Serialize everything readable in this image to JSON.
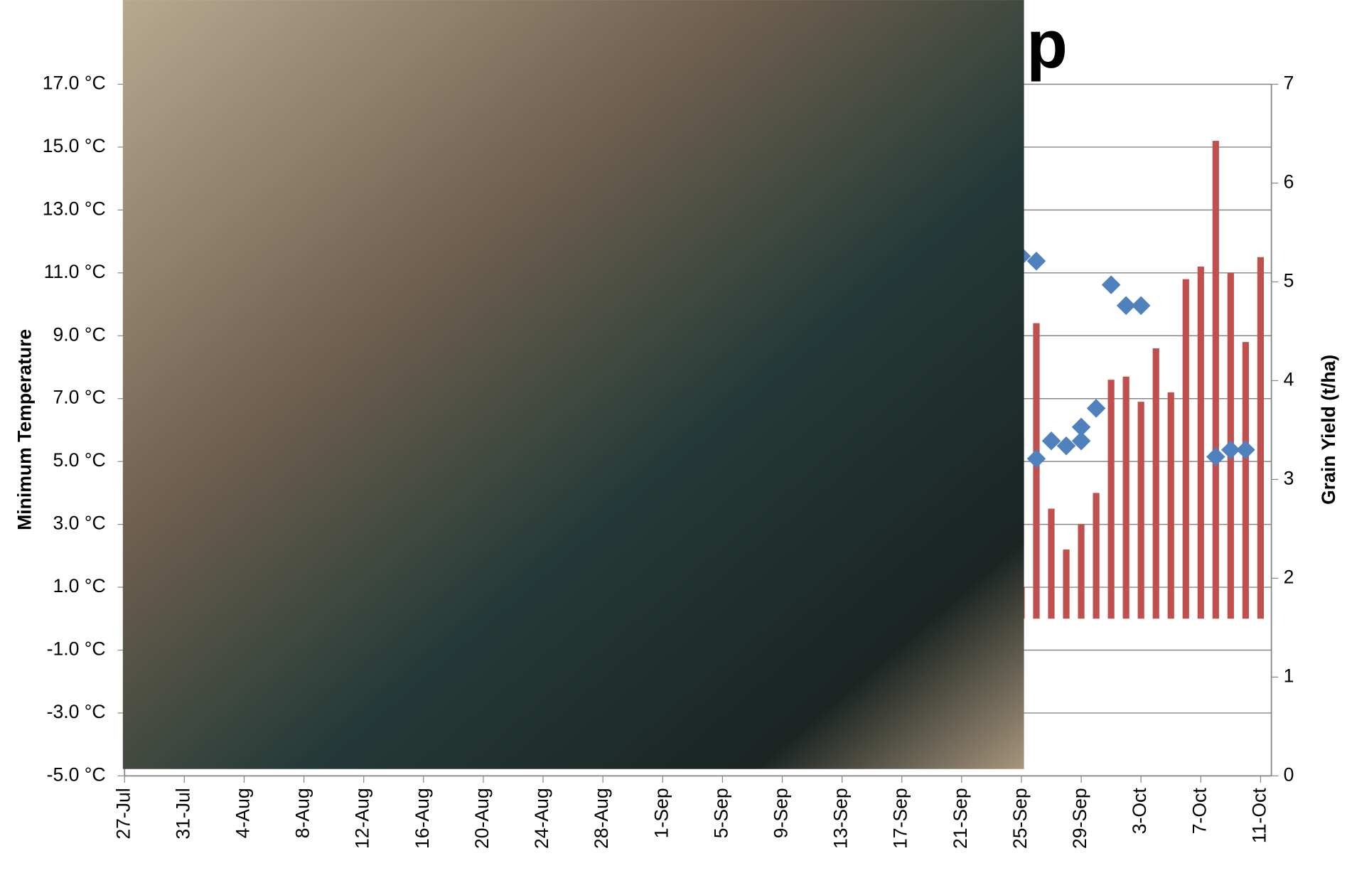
{
  "chart_data": {
    "type": "bar-scatter",
    "title": "p",
    "ylabel": "Minimum Temperature",
    "y2label": "Grain Yield (t/ha)",
    "categories": [
      "27-Jul",
      null,
      null,
      null,
      "31-Jul",
      null,
      null,
      null,
      "4-Aug",
      null,
      null,
      null,
      "8-Aug",
      null,
      null,
      null,
      "12-Aug",
      null,
      null,
      null,
      "16-Aug",
      null,
      null,
      null,
      "20-Aug",
      null,
      null,
      null,
      "24-Aug",
      null,
      null,
      null,
      "28-Aug",
      null,
      null,
      null,
      "1-Sep",
      null,
      null,
      null,
      "5-Sep",
      null,
      null,
      null,
      "9-Sep",
      null,
      null,
      null,
      "13-Sep",
      null,
      null,
      null,
      "17-Sep",
      null,
      null,
      null,
      "21-Sep",
      null,
      null,
      null,
      "25-Sep",
      null,
      null,
      null,
      "29-Sep",
      null,
      null,
      null,
      "3-Oct",
      null,
      null,
      null,
      "7-Oct",
      null,
      null,
      null,
      "11-Oct"
    ],
    "series": [
      {
        "type": "bar",
        "color": "#c0504d",
        "values": [
          null,
          null,
          null,
          null,
          null,
          null,
          null,
          null,
          null,
          null,
          null,
          null,
          null,
          null,
          null,
          null,
          null,
          null,
          null,
          null,
          null,
          null,
          null,
          null,
          null,
          null,
          null,
          null,
          null,
          null,
          null,
          null,
          null,
          null,
          null,
          null,
          null,
          null,
          null,
          null,
          null,
          null,
          null,
          null,
          null,
          null,
          null,
          null,
          null,
          null,
          null,
          null,
          null,
          null,
          null,
          null,
          null,
          null,
          null,
          null,
          1.0,
          9.4,
          3.5,
          2.2,
          3.0,
          4.0,
          7.6,
          7.7,
          6.9,
          8.6,
          7.2,
          10.8,
          11.2,
          15.2,
          11.0,
          8.8,
          11.5
        ]
      },
      {
        "type": "scatter",
        "axis": "y2",
        "color": "#4f81bd",
        "values": [
          null,
          null,
          null,
          null,
          null,
          null,
          null,
          null,
          null,
          null,
          null,
          null,
          null,
          null,
          null,
          null,
          null,
          null,
          null,
          null,
          null,
          null,
          null,
          null,
          null,
          null,
          null,
          null,
          null,
          null,
          null,
          null,
          null,
          null,
          null,
          null,
          null,
          null,
          null,
          null,
          null,
          null,
          null,
          null,
          null,
          null,
          null,
          null,
          null,
          null,
          null,
          null,
          null,
          null,
          null,
          null,
          null,
          null,
          null,
          null,
          5.26,
          5.21,
          3.39,
          3.34,
          3.53,
          3.72,
          4.97,
          4.76,
          4.76,
          null,
          null,
          null,
          null,
          3.23,
          3.3,
          3.3,
          null
        ]
      },
      {
        "type": "scatter",
        "axis": "y2",
        "color": "#4f81bd",
        "values": [
          null,
          null,
          null,
          null,
          null,
          null,
          null,
          null,
          null,
          null,
          null,
          null,
          null,
          null,
          null,
          null,
          null,
          null,
          null,
          null,
          null,
          null,
          null,
          null,
          null,
          null,
          null,
          null,
          null,
          null,
          null,
          null,
          null,
          null,
          null,
          null,
          null,
          null,
          null,
          null,
          null,
          null,
          null,
          null,
          null,
          null,
          null,
          null,
          null,
          null,
          null,
          null,
          null,
          null,
          null,
          null,
          null,
          null,
          null,
          null,
          null,
          3.21,
          null,
          null,
          3.39,
          null,
          null,
          null,
          null,
          null,
          null,
          null,
          null,
          null,
          null,
          null,
          null
        ]
      }
    ],
    "ylim": [
      -5,
      17
    ],
    "yticks": [
      {
        "value": -5,
        "label": "-5.0 °C"
      },
      {
        "value": -3,
        "label": "-3.0 °C"
      },
      {
        "value": -1,
        "label": "-1.0 °C"
      },
      {
        "value": 1,
        "label": "1.0 °C"
      },
      {
        "value": 3,
        "label": "3.0 °C"
      },
      {
        "value": 5,
        "label": "5.0 °C"
      },
      {
        "value": 7,
        "label": "7.0 °C"
      },
      {
        "value": 9,
        "label": "9.0 °C"
      },
      {
        "value": 11,
        "label": "11.0 °C"
      },
      {
        "value": 13,
        "label": "13.0 °C"
      },
      {
        "value": 15,
        "label": "15.0 °C"
      },
      {
        "value": 17,
        "label": "17.0 °C"
      }
    ],
    "y2lim": [
      0,
      7
    ],
    "y2ticks": [
      0,
      1,
      2,
      3,
      4,
      5,
      6,
      7
    ],
    "grid": true
  }
}
